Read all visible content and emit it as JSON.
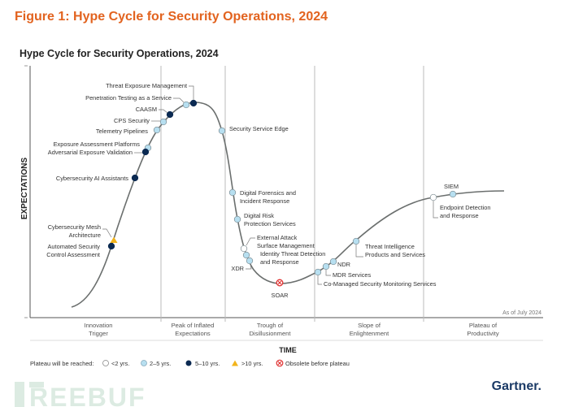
{
  "figure_title": "Figure 1: Hype Cycle for Security Operations, 2024",
  "chart_title": "Hype Cycle for Security Operations, 2024",
  "y_axis_label": "EXPECTATIONS",
  "x_axis_label": "TIME",
  "as_of": "As of July 2024",
  "phases": [
    {
      "line1": "Innovation",
      "line2": "Trigger"
    },
    {
      "line1": "Peak of Inflated",
      "line2": "Expectations"
    },
    {
      "line1": "Trough of",
      "line2": "Disillusionment"
    },
    {
      "line1": "Slope of",
      "line2": "Enlightenment"
    },
    {
      "line1": "Plateau of",
      "line2": "Productivity"
    }
  ],
  "legend": {
    "title": "Plateau will be reached:",
    "items": [
      {
        "key": "lt2",
        "label": "<2 yrs."
      },
      {
        "key": "2to5",
        "label": "2–5 yrs."
      },
      {
        "key": "5to10",
        "label": "5–10 yrs."
      },
      {
        "key": "gt10",
        "label": ">10 yrs."
      },
      {
        "key": "obsolete",
        "label": "Obsolete before plateau"
      }
    ]
  },
  "colors": {
    "figure_title": "#e2631f",
    "lt2": "#ffffff",
    "2to5": "#b7dff0",
    "5to10": "#0b2a52",
    "gt10": "#f2b41c",
    "obsolete": "#e03030",
    "curve": "#6b6f6e",
    "gartner": "#1b3a66",
    "watermark": "#dcebe2"
  },
  "technologies": [
    {
      "lines": [
        "Threat Exposure Management"
      ],
      "category": "5to10",
      "phase": "Peak of Inflated Expectations"
    },
    {
      "lines": [
        "Penetration Testing as a Service"
      ],
      "category": "2to5",
      "phase": "Peak of Inflated Expectations"
    },
    {
      "lines": [
        "CAASM"
      ],
      "category": "5to10",
      "phase": "Peak of Inflated Expectations"
    },
    {
      "lines": [
        "CPS Security"
      ],
      "category": "2to5",
      "phase": "Peak of Inflated Expectations"
    },
    {
      "lines": [
        "Telemetry Pipelines"
      ],
      "category": "2to5",
      "phase": "Innovation Trigger"
    },
    {
      "lines": [
        "Exposure Assessment Platforms"
      ],
      "category": "2to5",
      "phase": "Innovation Trigger"
    },
    {
      "lines": [
        "Adversarial Exposure Validation"
      ],
      "category": "5to10",
      "phase": "Innovation Trigger"
    },
    {
      "lines": [
        "Cybersecurity AI Assistants"
      ],
      "category": "5to10",
      "phase": "Innovation Trigger"
    },
    {
      "lines": [
        "Cybersecurity Mesh",
        "Architecture"
      ],
      "category": "gt10",
      "phase": "Innovation Trigger"
    },
    {
      "lines": [
        "Automated Security",
        "Control Assessment"
      ],
      "category": "5to10",
      "phase": "Innovation Trigger"
    },
    {
      "lines": [
        "Security Service Edge"
      ],
      "category": "2to5",
      "phase": "Trough of Disillusionment"
    },
    {
      "lines": [
        "Digital Forensics and",
        "Incident Response"
      ],
      "category": "2to5",
      "phase": "Trough of Disillusionment"
    },
    {
      "lines": [
        "Digital Risk",
        "Protection Services"
      ],
      "category": "2to5",
      "phase": "Trough of Disillusionment"
    },
    {
      "lines": [
        "External Attack",
        "Surface Management"
      ],
      "category": "lt2",
      "phase": "Trough of Disillusionment"
    },
    {
      "lines": [
        "Identity Threat Detection",
        "and Response"
      ],
      "category": "2to5",
      "phase": "Trough of Disillusionment"
    },
    {
      "lines": [
        "XDR"
      ],
      "category": "2to5",
      "phase": "Trough of Disillusionment"
    },
    {
      "lines": [
        "SOAR"
      ],
      "category": "obsolete",
      "phase": "Trough of Disillusionment"
    },
    {
      "lines": [
        "Co-Managed Security Monitoring Services"
      ],
      "category": "2to5",
      "phase": "Slope of Enlightenment"
    },
    {
      "lines": [
        "MDR Services"
      ],
      "category": "2to5",
      "phase": "Slope of Enlightenment"
    },
    {
      "lines": [
        "NDR"
      ],
      "category": "2to5",
      "phase": "Slope of Enlightenment"
    },
    {
      "lines": [
        "Threat Intelligence",
        "Products and Services"
      ],
      "category": "2to5",
      "phase": "Slope of Enlightenment"
    },
    {
      "lines": [
        "Endpoint Detection",
        "and Response"
      ],
      "category": "lt2",
      "phase": "Plateau of Productivity"
    },
    {
      "lines": [
        "SIEM"
      ],
      "category": "2to5",
      "phase": "Plateau of Productivity"
    }
  ],
  "logo": "Gartner.",
  "watermark": "FREEBUF"
}
